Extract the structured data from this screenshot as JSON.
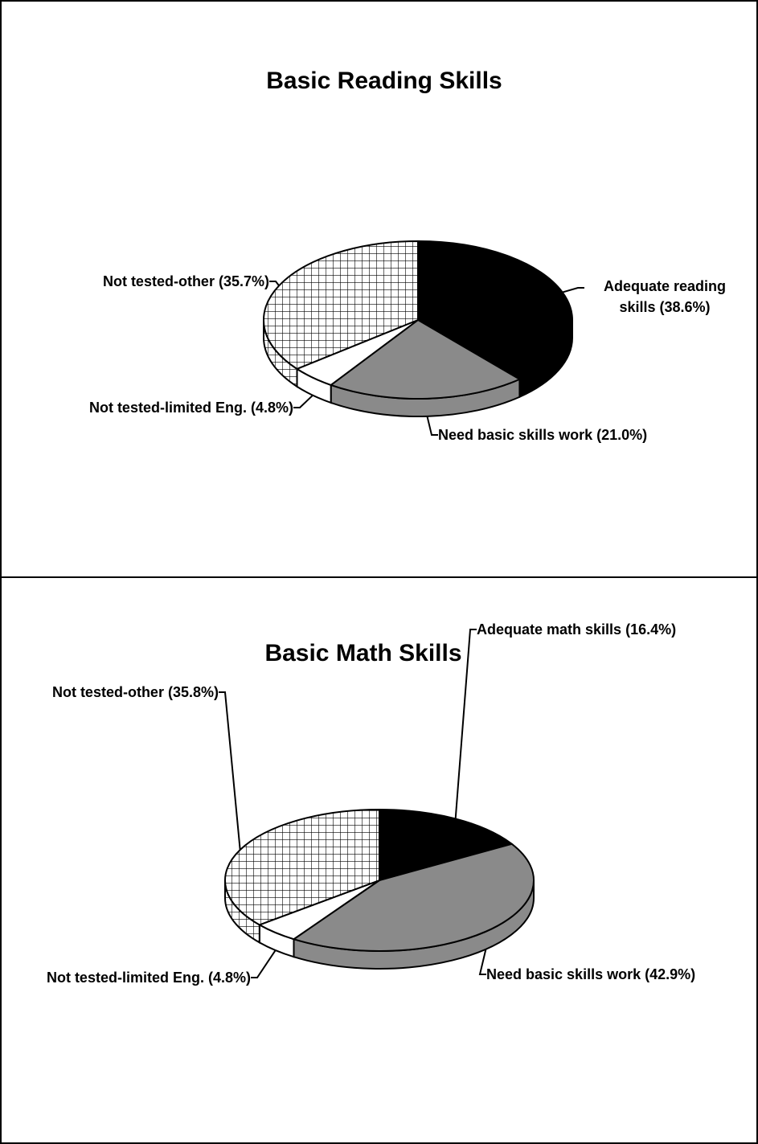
{
  "chart_data": [
    {
      "type": "pie",
      "title": "Basic Reading Skills",
      "categories": [
        "Adequate reading skills",
        "Need basic skills work",
        "Not tested-limited Eng.",
        "Not tested-other"
      ],
      "values": [
        38.6,
        21.0,
        4.8,
        35.7
      ],
      "value_labels": [
        "(38.6%)",
        "(21.0%)",
        "(4.8%)",
        "(35.7%)"
      ],
      "colors": [
        "#000000",
        "#8a8a8a",
        "#ffffff",
        "#ffffff"
      ],
      "hatch": [
        false,
        false,
        false,
        true
      ]
    },
    {
      "type": "pie",
      "title": "Basic Math Skills",
      "categories": [
        "Adequate math skills",
        "Need basic skills work",
        "Not tested-limited Eng.",
        "Not tested-other"
      ],
      "values": [
        16.4,
        42.9,
        4.8,
        35.8
      ],
      "value_labels": [
        "(16.4%)",
        "(42.9%)",
        "(4.8%)",
        "(35.8%)"
      ],
      "colors": [
        "#000000",
        "#8a8a8a",
        "#ffffff",
        "#ffffff"
      ],
      "hatch": [
        false,
        false,
        false,
        true
      ]
    }
  ]
}
